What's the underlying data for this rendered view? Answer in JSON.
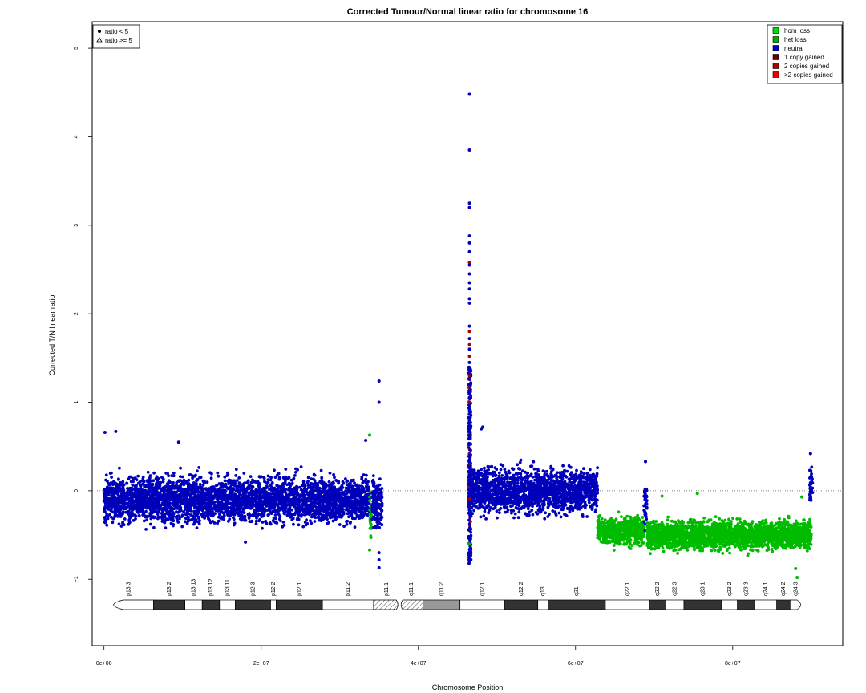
{
  "chart_data": {
    "type": "scatter",
    "title": "Corrected Tumour/Normal linear ratio for chromosome  16",
    "xlabel": "Chromosome Position",
    "ylabel": "Corrected T/N linear ratio",
    "xlim": [
      -1500000,
      94000000
    ],
    "ylim": [
      -1.75,
      5.3
    ],
    "xticks": [
      0,
      20000000,
      40000000,
      60000000,
      80000000
    ],
    "xtick_labels": [
      "0e+00",
      "2e+07",
      "4e+07",
      "6e+07",
      "8e+07"
    ],
    "yticks": [
      -1,
      0,
      1,
      2,
      3,
      4,
      5
    ],
    "ytick_labels": [
      "−1",
      "0",
      "1",
      "2",
      "3",
      "4",
      "5"
    ],
    "reference_line_y": 0,
    "shape_legend": {
      "position": "top-left",
      "entries": [
        {
          "label": "ratio < 5",
          "symbol": "circle"
        },
        {
          "label": "ratio >= 5",
          "symbol": "triangle"
        }
      ]
    },
    "status_legend": {
      "position": "top-right",
      "entries": [
        {
          "label": "hom loss",
          "color": "#00dd00"
        },
        {
          "label": "het loss",
          "color": "#00aa00"
        },
        {
          "label": "neutral",
          "color": "#0000bb"
        },
        {
          "label": "1 copy gained",
          "color": "#660000"
        },
        {
          "label": "2 copies gained",
          "color": "#aa0000"
        },
        {
          "label": ">2 copies gained",
          "color": "#ee0000"
        }
      ]
    },
    "segments": [
      {
        "status": "neutral",
        "color": "#0000bb",
        "x_start": 0,
        "x_end": 33800000,
        "y_mean": -0.1,
        "y_spread": 0.22
      },
      {
        "status": "het loss",
        "color": "#00bb00",
        "x_start": 33800000,
        "x_end": 34100000,
        "y_mean": -0.25,
        "y_spread": 0.2
      },
      {
        "status": "neutral",
        "color": "#0000bb",
        "x_start": 34100000,
        "x_end": 35400000,
        "y_mean": -0.15,
        "y_spread": 0.25
      },
      {
        "status": "neutral",
        "color": "#0000bb",
        "x_start": 46400000,
        "x_end": 62800000,
        "y_mean": 0.0,
        "y_spread": 0.22
      },
      {
        "status": "het loss",
        "color": "#00bb00",
        "x_start": 62800000,
        "x_end": 68700000,
        "y_mean": -0.45,
        "y_spread": 0.14
      },
      {
        "status": "neutral",
        "color": "#0000bb",
        "x_start": 68700000,
        "x_end": 69100000,
        "y_mean": -0.15,
        "y_spread": 0.22
      },
      {
        "status": "het loss",
        "color": "#00bb00",
        "x_start": 69100000,
        "x_end": 90000000,
        "y_mean": -0.5,
        "y_spread": 0.14
      },
      {
        "status": "neutral",
        "color": "#0000bb",
        "x_start": 89800000,
        "x_end": 90200000,
        "y_mean": 0.05,
        "y_spread": 0.18
      }
    ],
    "outliers": [
      {
        "x": 46500000,
        "y": 4.48,
        "color": "#0000bb"
      },
      {
        "x": 46500000,
        "y": 3.85,
        "color": "#0000bb"
      },
      {
        "x": 46500000,
        "y": 3.25,
        "color": "#0000bb"
      },
      {
        "x": 46500000,
        "y": 3.2,
        "color": "#0000bb"
      },
      {
        "x": 46500000,
        "y": 2.88,
        "color": "#0000bb"
      },
      {
        "x": 46500000,
        "y": 2.8,
        "color": "#0000bb"
      },
      {
        "x": 46500000,
        "y": 2.7,
        "color": "#0000bb"
      },
      {
        "x": 46500000,
        "y": 2.58,
        "color": "#aa0000"
      },
      {
        "x": 46500000,
        "y": 2.55,
        "color": "#0000bb"
      },
      {
        "x": 46500000,
        "y": 2.45,
        "color": "#0000bb"
      },
      {
        "x": 46500000,
        "y": 2.35,
        "color": "#0000bb"
      },
      {
        "x": 46500000,
        "y": 2.28,
        "color": "#0000bb"
      },
      {
        "x": 46500000,
        "y": 2.17,
        "color": "#0000bb"
      },
      {
        "x": 46500000,
        "y": 2.12,
        "color": "#0000bb"
      },
      {
        "x": 46500000,
        "y": 1.86,
        "color": "#0000bb"
      },
      {
        "x": 46500000,
        "y": 1.8,
        "color": "#aa0000"
      },
      {
        "x": 46500000,
        "y": 1.72,
        "color": "#0000bb"
      },
      {
        "x": 46500000,
        "y": 1.65,
        "color": "#aa0000"
      },
      {
        "x": 46500000,
        "y": 1.6,
        "color": "#0000bb"
      },
      {
        "x": 46500000,
        "y": 1.52,
        "color": "#aa0000"
      },
      {
        "x": 46500000,
        "y": 1.45,
        "color": "#0000bb"
      },
      {
        "x": 46500000,
        "y": 1.38,
        "color": "#0000bb"
      },
      {
        "x": 46500000,
        "y": 1.3,
        "color": "#aa0000"
      },
      {
        "x": 46500000,
        "y": 1.2,
        "color": "#0000bb"
      },
      {
        "x": 46500000,
        "y": 1.1,
        "color": "#0000bb"
      },
      {
        "x": 46500000,
        "y": 1.0,
        "color": "#aa0000"
      },
      {
        "x": 46500000,
        "y": 0.9,
        "color": "#0000bb"
      },
      {
        "x": 46500000,
        "y": 0.8,
        "color": "#0000bb"
      },
      {
        "x": 46500000,
        "y": 0.7,
        "color": "#0000bb"
      },
      {
        "x": 46500000,
        "y": 0.6,
        "color": "#0000bb"
      },
      {
        "x": 46450000,
        "y": -0.7,
        "color": "#0000bb"
      },
      {
        "x": 46450000,
        "y": -0.78,
        "color": "#0000bb"
      },
      {
        "x": 46450000,
        "y": -0.82,
        "color": "#0000bb"
      },
      {
        "x": 46450000,
        "y": -0.6,
        "color": "#00bb00"
      },
      {
        "x": 35000000,
        "y": 1.24,
        "color": "#0000bb"
      },
      {
        "x": 35000000,
        "y": 1.0,
        "color": "#0000bb"
      },
      {
        "x": 35000000,
        "y": -0.7,
        "color": "#0000bb"
      },
      {
        "x": 35000000,
        "y": -0.78,
        "color": "#0000bb"
      },
      {
        "x": 35000000,
        "y": -0.87,
        "color": "#0000bb"
      },
      {
        "x": 33800000,
        "y": 0.63,
        "color": "#00bb00"
      },
      {
        "x": 33800000,
        "y": -0.67,
        "color": "#00bb00"
      },
      {
        "x": 33300000,
        "y": 0.57,
        "color": "#0000bb"
      },
      {
        "x": 48200000,
        "y": 0.72,
        "color": "#0000bb"
      },
      {
        "x": 48000000,
        "y": 0.7,
        "color": "#0000bb"
      },
      {
        "x": 120000,
        "y": 0.66,
        "color": "#0000bb"
      },
      {
        "x": 1500000,
        "y": 0.67,
        "color": "#0000bb"
      },
      {
        "x": 9500000,
        "y": 0.55,
        "color": "#0000bb"
      },
      {
        "x": 18000000,
        "y": -0.58,
        "color": "#0000bb"
      },
      {
        "x": 68900000,
        "y": 0.33,
        "color": "#0000bb"
      },
      {
        "x": 89900000,
        "y": 0.42,
        "color": "#0000bb"
      },
      {
        "x": 88200000,
        "y": -0.98,
        "color": "#00bb00"
      },
      {
        "x": 88000000,
        "y": -0.88,
        "color": "#00bb00"
      },
      {
        "x": 88800000,
        "y": -0.07,
        "color": "#00bb00"
      },
      {
        "x": 75500000,
        "y": -0.03,
        "color": "#00bb00"
      },
      {
        "x": 71000000,
        "y": -0.06,
        "color": "#00bb00"
      }
    ],
    "ideogram": {
      "bands": [
        {
          "name": "p13.3",
          "start": 0,
          "end": 6300000,
          "stain": "gneg"
        },
        {
          "name": "p13.2",
          "start": 6300000,
          "end": 10300000,
          "stain": "gpos"
        },
        {
          "name": "p13.13",
          "start": 10300000,
          "end": 12500000,
          "stain": "gneg"
        },
        {
          "name": "p13.12",
          "start": 12500000,
          "end": 14700000,
          "stain": "gpos"
        },
        {
          "name": "p13.11",
          "start": 14700000,
          "end": 16700000,
          "stain": "gneg"
        },
        {
          "name": "p12.3",
          "start": 16700000,
          "end": 21200000,
          "stain": "gpos"
        },
        {
          "name": "p12.2",
          "start": 21200000,
          "end": 21900000,
          "stain": "gneg"
        },
        {
          "name": "p12.1",
          "start": 21900000,
          "end": 27800000,
          "stain": "gpos"
        },
        {
          "name": "p11.2",
          "start": 27800000,
          "end": 34300000,
          "stain": "gneg"
        },
        {
          "name": "p11.1",
          "start": 34300000,
          "end": 37600000,
          "stain": "acen"
        },
        {
          "name": "q11.1",
          "start": 37600000,
          "end": 40600000,
          "stain": "acen"
        },
        {
          "name": "q11.2",
          "start": 40600000,
          "end": 45300000,
          "stain": "gvar"
        },
        {
          "name": "q12.1",
          "start": 45300000,
          "end": 51000000,
          "stain": "gneg"
        },
        {
          "name": "q12.2",
          "start": 51000000,
          "end": 55200000,
          "stain": "gpos"
        },
        {
          "name": "q13",
          "start": 55200000,
          "end": 56500000,
          "stain": "gneg"
        },
        {
          "name": "q21",
          "start": 56500000,
          "end": 63800000,
          "stain": "gpos"
        },
        {
          "name": "q22.1",
          "start": 63800000,
          "end": 69400000,
          "stain": "gneg"
        },
        {
          "name": "q22.2",
          "start": 69400000,
          "end": 71500000,
          "stain": "gpos"
        },
        {
          "name": "q22.3",
          "start": 71500000,
          "end": 73800000,
          "stain": "gneg"
        },
        {
          "name": "q23.1",
          "start": 73800000,
          "end": 78600000,
          "stain": "gpos"
        },
        {
          "name": "q23.2",
          "start": 78600000,
          "end": 80600000,
          "stain": "gneg"
        },
        {
          "name": "q23.3",
          "start": 80600000,
          "end": 82800000,
          "stain": "gpos"
        },
        {
          "name": "q24.1",
          "start": 82800000,
          "end": 85600000,
          "stain": "gneg"
        },
        {
          "name": "q24.2",
          "start": 85600000,
          "end": 87300000,
          "stain": "gpos"
        },
        {
          "name": "q24.3",
          "start": 87300000,
          "end": 88800000,
          "stain": "gneg"
        }
      ],
      "chrom_end": 88800000
    }
  }
}
